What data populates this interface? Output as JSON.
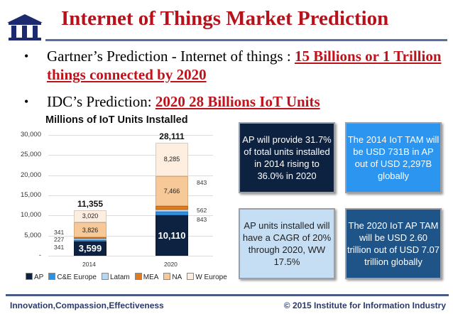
{
  "header": {
    "title": "Internet of Things Market Prediction",
    "logo_icon": "building-pillars-icon"
  },
  "bullets": [
    {
      "prefix": "Gartner’s Prediction - Internet of things : ",
      "highlight": "15 Billions or 1 Trillion things connected by 2020"
    },
    {
      "prefix": "IDC’s Prediction: ",
      "highlight": "2020 28 Billions IoT Units"
    }
  ],
  "chart_data": {
    "type": "bar",
    "stacked": true,
    "title": "Millions of IoT Units Installed",
    "categories": [
      "2014",
      "2020"
    ],
    "series": [
      {
        "name": "AP",
        "color": "#0d2240",
        "values": [
          3599,
          10110
        ]
      },
      {
        "name": "C&E Europe",
        "color": "#2f8fe0",
        "values": [
          341,
          843
        ]
      },
      {
        "name": "Latam",
        "color": "#b8d8f2",
        "values": [
          227,
          562
        ]
      },
      {
        "name": "MEA",
        "color": "#e07b22",
        "values": [
          341,
          843
        ]
      },
      {
        "name": "NA",
        "color": "#f8c998",
        "values": [
          3826,
          7466
        ]
      },
      {
        "name": "W Europe",
        "color": "#fdeee0",
        "values": [
          3020,
          8285
        ]
      }
    ],
    "totals": [
      "11,355",
      "28,111"
    ],
    "segment_labels": {
      "2014": {
        "AP": "3,599",
        "C&E Europe": "341",
        "Latam": "227",
        "MEA": "341",
        "NA": "3,826",
        "W Europe": "3,020"
      },
      "2020": {
        "AP": "10,110",
        "C&E Europe": "843",
        "Latam": "562",
        "MEA": "843",
        "NA": "7,466",
        "W Europe": "8,285"
      }
    },
    "yticks": [
      "30,000",
      "25,000",
      "20,000",
      "15,000",
      "10,000",
      "5,000",
      "-"
    ],
    "ylim": [
      0,
      30000
    ],
    "grid": true,
    "legend_position": "bottom",
    "xlabel": "",
    "ylabel": ""
  },
  "boxes": [
    {
      "text": "AP will provide 31.7% of total units installed in 2014 rising to 36.0% in 2020",
      "bg": "#0d2240",
      "fg": "#ffffff"
    },
    {
      "text": "The 2014 IoT TAM will be USD 731B in AP out of USD 2,297B globally",
      "bg": "#2b95ef",
      "fg": "#ffffff"
    },
    {
      "text": "AP units installed will have a CAGR of 20% through 2020, WW 17.5%",
      "bg": "#c5def3",
      "fg": "#222222"
    },
    {
      "text": "The 2020 IoT AP TAM will be USD 2.60 trillion out of USD 7.07 trillion globally",
      "bg": "#1f5489",
      "fg": "#ffffff"
    }
  ],
  "footer": {
    "left": "Innovation,Compassion,Effectiveness",
    "right": "© 2015 Institute for Information Industry"
  }
}
